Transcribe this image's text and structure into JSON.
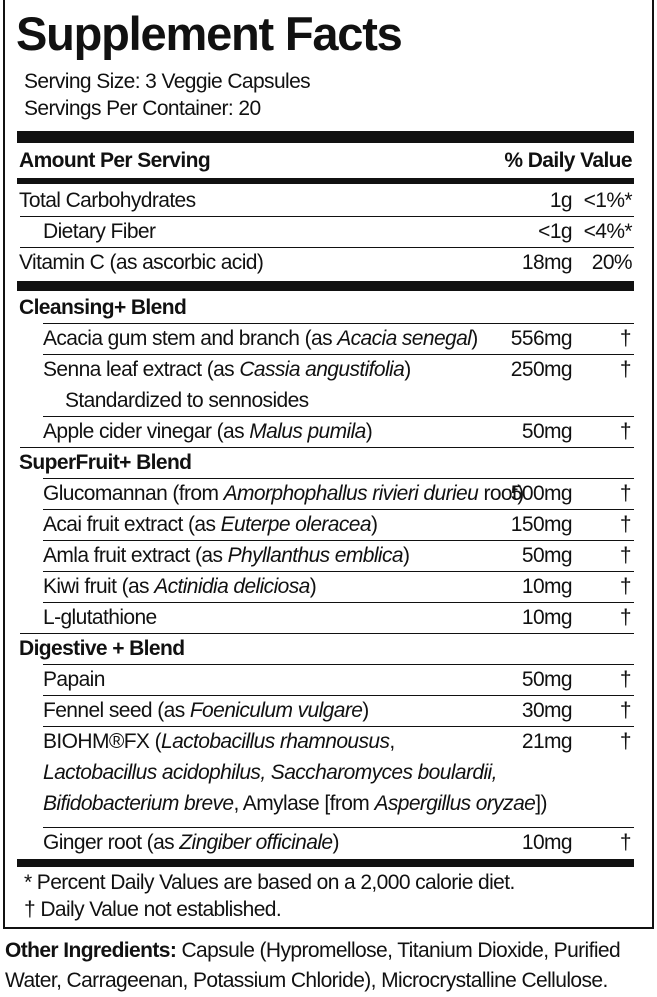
{
  "title": "Supplement Facts",
  "serving_size": "Serving Size: 3 Veggie Capsules",
  "servings_per_container": "Servings Per Container: 20",
  "header": {
    "amount_per_serving": "Amount Per Serving",
    "daily_value": "% Daily Value"
  },
  "nutrients": [
    {
      "name": "Total Carbohydrates",
      "amount": "1g",
      "dv": "<1%*"
    },
    {
      "name": "Dietary Fiber",
      "amount": "<1g",
      "dv": "<4%*"
    },
    {
      "name": "Vitamin C (as ascorbic acid)",
      "amount": "18mg",
      "dv": "20%"
    }
  ],
  "blends": [
    {
      "name": "Cleansing+ Blend",
      "items": [
        {
          "segments": [
            {
              "t": "Acacia gum stem and branch (as "
            },
            {
              "t": "Acacia senegal",
              "i": true
            },
            {
              "t": ")"
            }
          ],
          "amount": "556mg",
          "dv": "†"
        },
        {
          "segments": [
            {
              "t": "Senna leaf extract (as "
            },
            {
              "t": "Cassia angustifolia",
              "i": true
            },
            {
              "t": ")"
            }
          ],
          "amount": "250mg",
          "dv": "†"
        },
        {
          "segments": [
            {
              "t": "Standardized to sennosides"
            }
          ],
          "continuation": true
        },
        {
          "segments": [
            {
              "t": "Apple cider vinegar (as "
            },
            {
              "t": "Malus pumila",
              "i": true
            },
            {
              "t": ")"
            }
          ],
          "amount": "50mg",
          "dv": "†"
        }
      ]
    },
    {
      "name": "SuperFruit+ Blend",
      "items": [
        {
          "segments": [
            {
              "t": "Glucomannan (from "
            },
            {
              "t": "Amorphophallus rivieri durieu",
              "i": true
            },
            {
              "t": " root)"
            }
          ],
          "amount": "500mg",
          "dv": "†"
        },
        {
          "segments": [
            {
              "t": "Acai fruit extract (as "
            },
            {
              "t": "Euterpe oleracea",
              "i": true
            },
            {
              "t": ")"
            }
          ],
          "amount": "150mg",
          "dv": "†"
        },
        {
          "segments": [
            {
              "t": "Amla fruit extract (as "
            },
            {
              "t": "Phyllanthus emblica",
              "i": true
            },
            {
              "t": ")"
            }
          ],
          "amount": "50mg",
          "dv": "†"
        },
        {
          "segments": [
            {
              "t": "Kiwi fruit (as "
            },
            {
              "t": "Actinidia deliciosa",
              "i": true
            },
            {
              "t": ")"
            }
          ],
          "amount": "10mg",
          "dv": "†"
        },
        {
          "segments": [
            {
              "t": "L-glutathione"
            }
          ],
          "amount": "10mg",
          "dv": "†"
        }
      ]
    },
    {
      "name": "Digestive + Blend",
      "items": [
        {
          "segments": [
            {
              "t": "Papain"
            }
          ],
          "amount": "50mg",
          "dv": "†"
        },
        {
          "segments": [
            {
              "t": "Fennel seed (as "
            },
            {
              "t": "Foeniculum vulgare",
              "i": true
            },
            {
              "t": ")"
            }
          ],
          "amount": "30mg",
          "dv": "†"
        },
        {
          "segments": [
            {
              "t": "BIOHM®FX ("
            },
            {
              "t": "Lactobacillus rhamnousus",
              "i": true
            },
            {
              "t": ","
            }
          ],
          "amount": "21mg",
          "dv": "†"
        },
        {
          "segments": [
            {
              "t": "Lactobacillus acidophilus, Saccharomyces boulardii,",
              "i": true
            }
          ],
          "wrap": true
        },
        {
          "segments": [
            {
              "t": "Bifidobacterium breve",
              "i": true
            },
            {
              "t": ", Amylase [from "
            },
            {
              "t": "Aspergillus oryzae",
              "i": true
            },
            {
              "t": "])"
            }
          ],
          "wrap": true
        },
        {
          "segments": [
            {
              "t": "Ginger root (as "
            },
            {
              "t": "Zingiber officinale",
              "i": true
            },
            {
              "t": ")"
            }
          ],
          "amount": "10mg",
          "dv": "†",
          "gap": true
        }
      ]
    }
  ],
  "footnotes": [
    "* Percent Daily Values are based on a 2,000 calorie diet.",
    "† Daily Value not established."
  ],
  "other_ingredients": {
    "label": "Other Ingredients:",
    "text": " Capsule (Hypromellose, Titanium Dioxide, Purified Water, Carrageenan, Potassium Chloride), Microcrystalline Cellulose."
  }
}
